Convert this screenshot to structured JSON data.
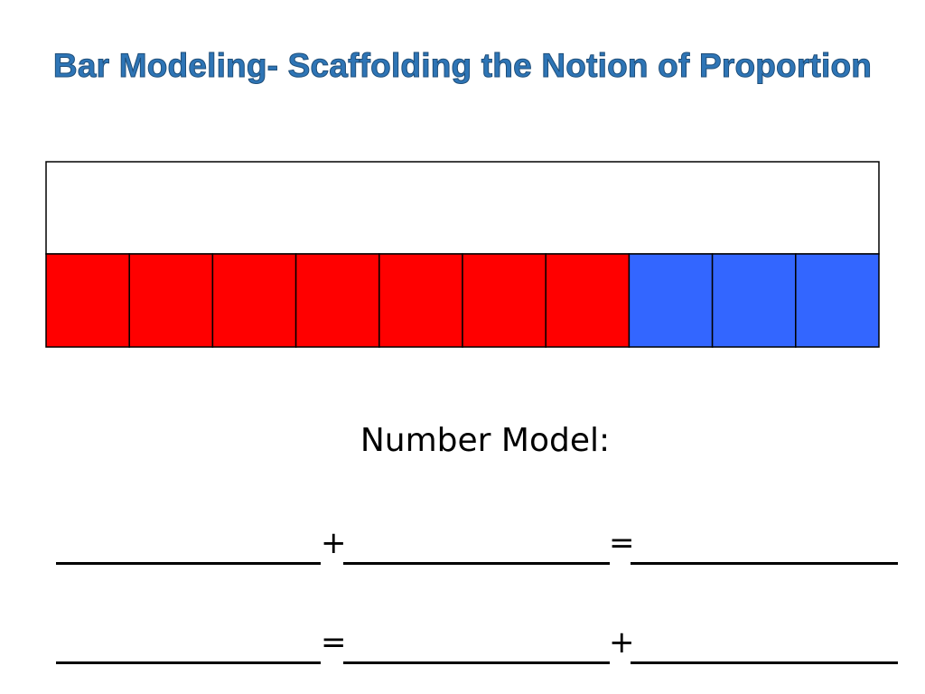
{
  "slide": {
    "title": "Bar Modeling- Scaffolding the Notion of Proportion",
    "title_color": "#2E75B6",
    "title_outline_color": "#1F4E79",
    "caption": "Number Model:"
  },
  "bar_model": {
    "top_bar_color": "#FFFFFF",
    "segments": [
      {
        "color": "#FF0000"
      },
      {
        "color": "#FF0000"
      },
      {
        "color": "#FF0000"
      },
      {
        "color": "#FF0000"
      },
      {
        "color": "#FF0000"
      },
      {
        "color": "#FF0000"
      },
      {
        "color": "#FF0000"
      },
      {
        "color": "#3366FF"
      },
      {
        "color": "#3366FF"
      },
      {
        "color": "#3366FF"
      }
    ]
  },
  "equations": [
    {
      "op1": "+",
      "op2": "="
    },
    {
      "op1": "=",
      "op2": "+"
    }
  ]
}
